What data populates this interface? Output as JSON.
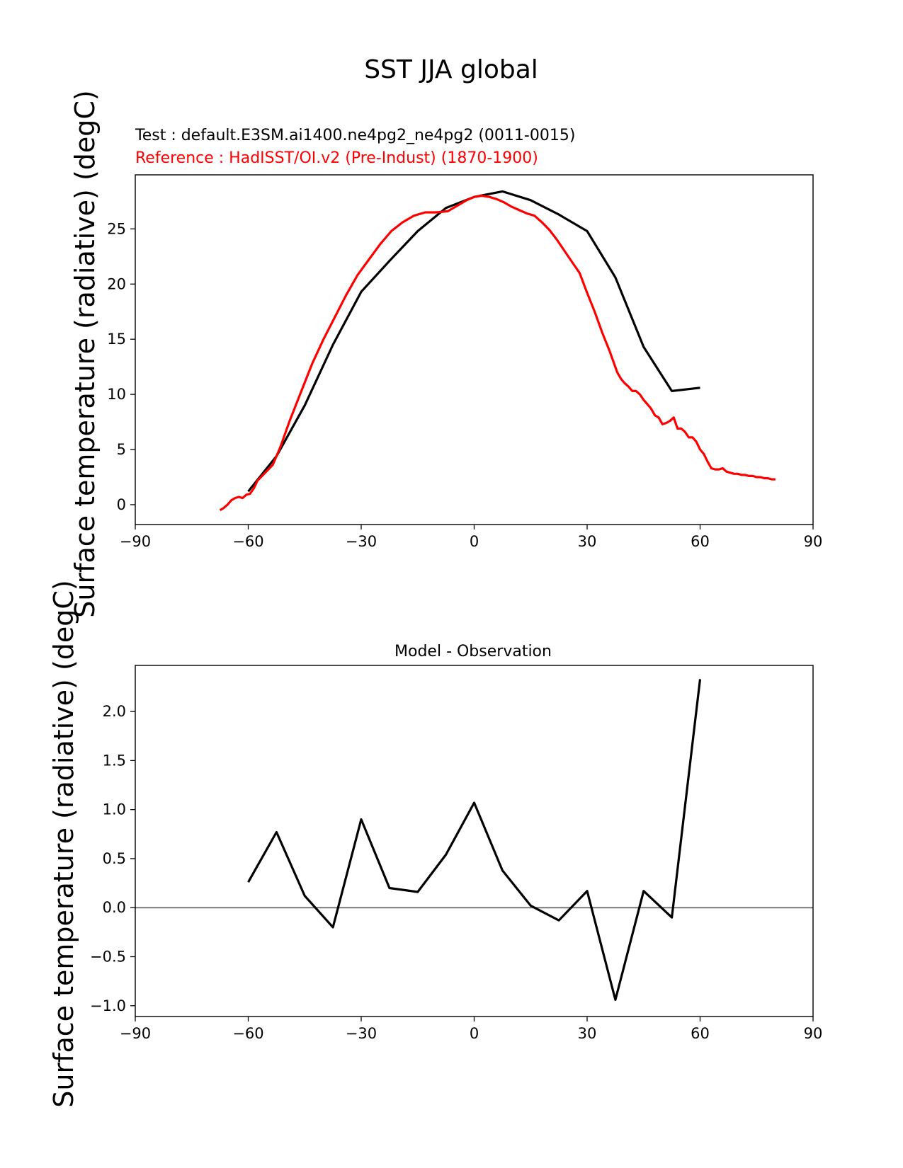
{
  "figure": {
    "title": "SST JJA global"
  },
  "chart_data": [
    {
      "type": "line",
      "title_lines": [
        {
          "text": "Test : default.E3SM.ai1400.ne4pg2_ne4pg2 (0011-0015)",
          "color": "#000000"
        },
        {
          "text": "Reference : HadISST/OI.v2 (Pre-Indust) (1870-1900)",
          "color": "#ff0000"
        }
      ],
      "xlabel": "",
      "ylabel": "Surface temperature (radiative) (degC)",
      "xlim": [
        -90,
        90
      ],
      "ylim": [
        -1.8,
        29.9
      ],
      "xticks": [
        -90,
        -60,
        -30,
        0,
        30,
        60,
        90
      ],
      "xtick_labels": [
        "−90",
        "−60",
        "−30",
        "0",
        "30",
        "60",
        "90"
      ],
      "yticks": [
        0,
        5,
        10,
        15,
        20,
        25
      ],
      "ytick_labels": [
        "0",
        "5",
        "10",
        "15",
        "20",
        "25"
      ],
      "series": [
        {
          "color": "#000000",
          "x": [
            -60,
            -52.5,
            -45,
            -37.5,
            -30,
            -22.5,
            -15,
            -7.5,
            0,
            7.5,
            15,
            22.5,
            30,
            37.5,
            45,
            52.5,
            60
          ],
          "y": [
            1.2,
            4.4,
            9.0,
            14.5,
            19.3,
            22.1,
            24.8,
            26.9,
            27.9,
            28.4,
            27.6,
            26.3,
            24.8,
            20.6,
            14.3,
            10.3,
            10.6
          ]
        },
        {
          "color": "#ff0000",
          "x": [
            -67.5,
            -66.5,
            -65.5,
            -64.5,
            -63.5,
            -62.5,
            -61.5,
            -60.5,
            -59.5,
            -58.5,
            -57.5,
            -55.5,
            -53.5,
            -51.5,
            -49,
            -46,
            -43,
            -40,
            -37,
            -34,
            -31,
            -28,
            -25,
            -22,
            -19,
            -16,
            -13,
            -10,
            -7,
            -4,
            -2,
            0,
            2,
            4,
            6,
            8,
            10,
            12,
            14,
            16,
            18,
            20,
            22,
            24,
            26,
            28,
            30,
            32,
            34,
            36,
            38,
            39,
            40,
            41,
            42,
            43,
            44,
            45,
            46,
            47,
            48,
            49,
            50,
            51,
            52,
            53,
            54,
            55,
            56,
            57,
            58,
            59,
            60,
            61,
            62,
            63,
            64,
            65,
            66,
            67,
            68,
            69,
            70,
            71,
            72,
            73,
            74,
            75,
            76,
            77,
            78,
            79,
            80
          ],
          "y": [
            -0.5,
            -0.3,
            0.0,
            0.4,
            0.6,
            0.7,
            0.6,
            0.9,
            1.0,
            1.5,
            2.2,
            2.9,
            3.6,
            5.2,
            7.6,
            10.2,
            12.8,
            15.0,
            17.0,
            19.0,
            20.8,
            22.2,
            23.6,
            24.8,
            25.6,
            26.2,
            26.5,
            26.5,
            26.6,
            27.2,
            27.6,
            27.9,
            28.0,
            27.9,
            27.7,
            27.4,
            27.0,
            26.7,
            26.4,
            26.2,
            25.6,
            24.9,
            24.0,
            23.0,
            22.0,
            21.0,
            19.2,
            17.5,
            15.6,
            13.9,
            12.0,
            11.4,
            11.0,
            10.7,
            10.3,
            10.3,
            10.0,
            9.5,
            9.1,
            8.7,
            8.1,
            7.9,
            7.3,
            7.4,
            7.6,
            7.9,
            6.9,
            6.9,
            6.6,
            6.1,
            6.1,
            5.7,
            5.0,
            4.6,
            3.9,
            3.3,
            3.2,
            3.2,
            3.3,
            3.0,
            2.9,
            2.8,
            2.8,
            2.7,
            2.7,
            2.6,
            2.6,
            2.5,
            2.5,
            2.4,
            2.4,
            2.3,
            2.3
          ]
        }
      ]
    },
    {
      "type": "line",
      "title": "Model - Observation",
      "xlabel": "",
      "ylabel": "Surface temperature (radiative) (degC)",
      "xlim": [
        -90,
        90
      ],
      "ylim": [
        -1.11,
        2.47
      ],
      "xticks": [
        -90,
        -60,
        -30,
        0,
        30,
        60,
        90
      ],
      "xtick_labels": [
        "−90",
        "−60",
        "−30",
        "0",
        "30",
        "60",
        "90"
      ],
      "yticks": [
        -1.0,
        -0.5,
        0.0,
        0.5,
        1.0,
        1.5,
        2.0
      ],
      "ytick_labels": [
        "−1.0",
        "−0.5",
        "0.0",
        "0.5",
        "1.0",
        "1.5",
        "2.0"
      ],
      "hline": {
        "y": 0.0,
        "color": "#808080"
      },
      "series": [
        {
          "color": "#000000",
          "x": [
            -60,
            -52.5,
            -45,
            -37.5,
            -30,
            -22.5,
            -15,
            -7.5,
            0,
            7.5,
            15,
            22.5,
            30,
            37.5,
            45,
            52.5,
            60
          ],
          "y": [
            0.26,
            0.77,
            0.12,
            -0.2,
            0.9,
            0.2,
            0.16,
            0.54,
            1.07,
            0.38,
            0.02,
            -0.13,
            0.17,
            -0.94,
            0.17,
            -0.1,
            2.33
          ]
        }
      ]
    }
  ]
}
